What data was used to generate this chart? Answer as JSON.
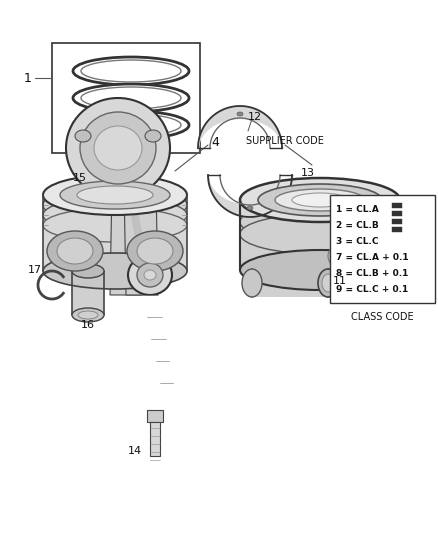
{
  "background_color": "#ffffff",
  "legend_lines": [
    "1 = CL.A",
    "2 = CL.B",
    "3 = CL.C",
    "7 = CL.A + 0.1",
    "8 = CL.B + 0.1",
    "9 = CL.C + 0.1"
  ],
  "supplier_code_label": "SUPPLIER CODE",
  "class_code_label": "CLASS CODE",
  "text_color": "#111111",
  "edge_color": "#444444",
  "light_gray": "#d8d8d8",
  "mid_gray": "#aaaaaa",
  "dark_gray": "#666666"
}
